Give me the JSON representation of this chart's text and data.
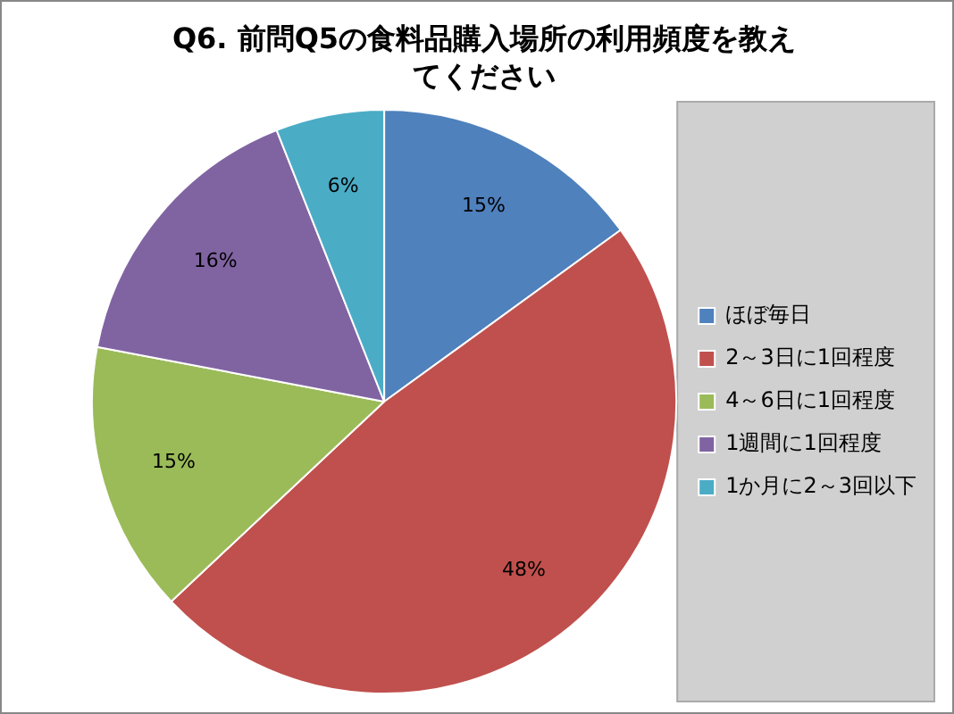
{
  "chart_data": {
    "type": "pie",
    "title": "Q6. 前問Q5の食料品購入場所の利用頻度を教えてください",
    "categories": [
      "ほぼ毎日",
      "2～3日に1回程度",
      "4～6日に1回程度",
      "1週間に1回程度",
      "1か月に2～3回以下"
    ],
    "values": [
      15,
      48,
      15,
      16,
      6
    ],
    "colors": [
      "#4f81bd",
      "#c0504d",
      "#9bbb59",
      "#8064a2",
      "#4bacc6"
    ],
    "value_labels": [
      "15%",
      "48%",
      "15%",
      "16%",
      "6%"
    ],
    "legend": "right"
  }
}
